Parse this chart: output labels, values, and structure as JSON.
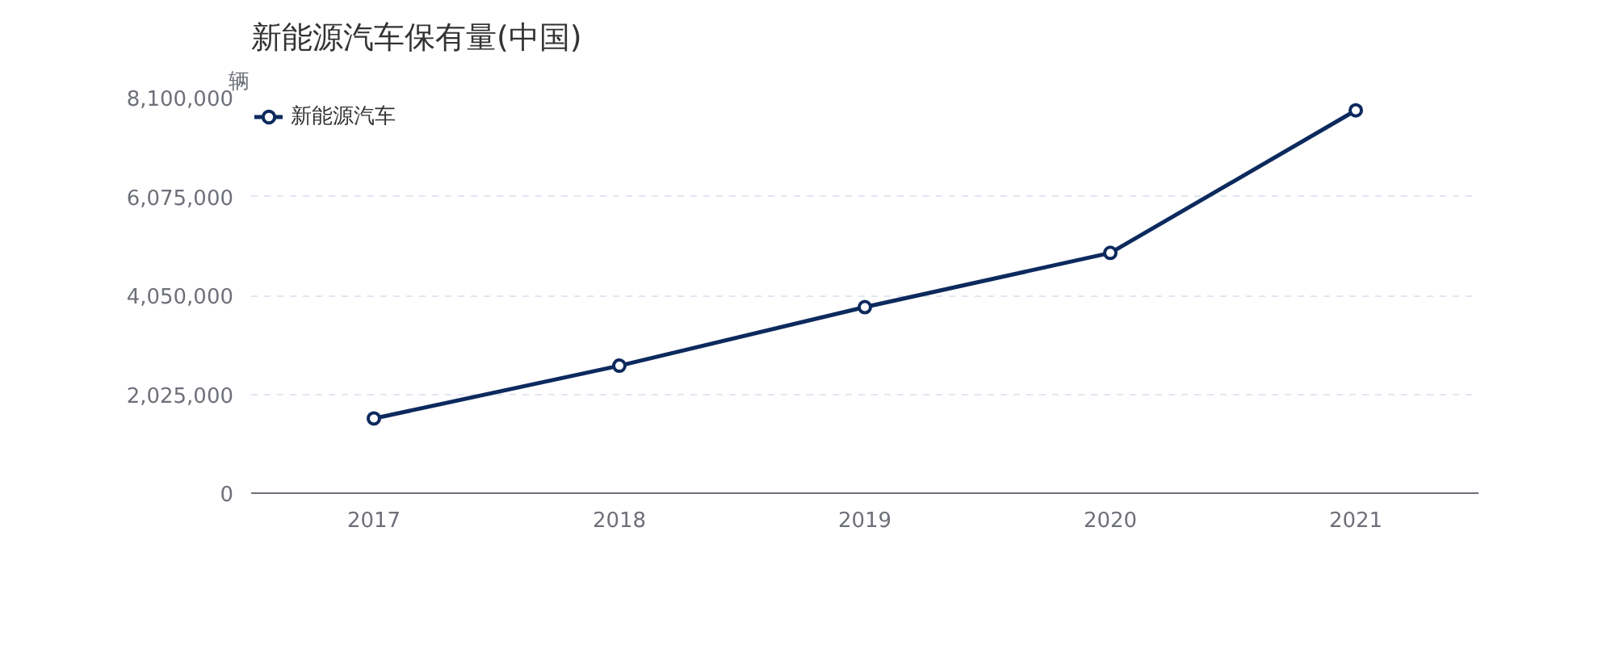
{
  "chart_data": {
    "type": "line",
    "title": "新能源汽车保有量(中国)",
    "ylabel": "辆",
    "categories": [
      "2017",
      "2018",
      "2019",
      "2020",
      "2021"
    ],
    "series": [
      {
        "name": "新能源汽车",
        "color": "#0d2a5e",
        "values": [
          1530000,
          2610000,
          3810000,
          4920000,
          7840000
        ]
      }
    ],
    "ylim": [
      0,
      8100000
    ],
    "yticks": [
      {
        "value": 0,
        "label": "0"
      },
      {
        "value": 2025000,
        "label": "2,025,000"
      },
      {
        "value": 4050000,
        "label": "4,050,000"
      },
      {
        "value": 6075000,
        "label": "6,075,000"
      },
      {
        "value": 8100000,
        "label": "8,100,000"
      }
    ],
    "grid": "y",
    "legend": "top left",
    "marker": "circle",
    "line_style": "solid"
  }
}
